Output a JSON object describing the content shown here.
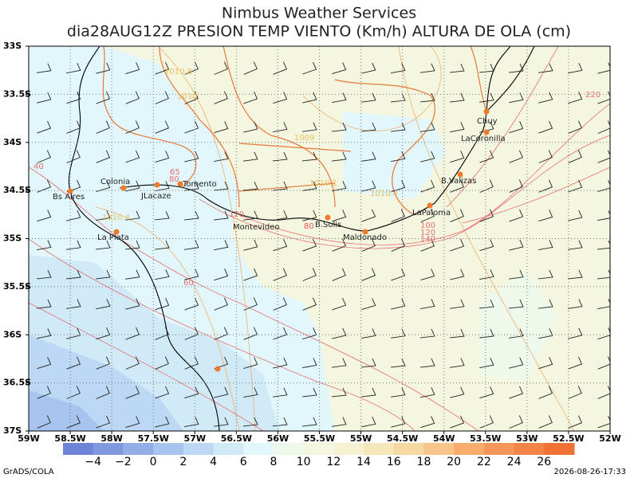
{
  "title": {
    "line1": "Nimbus Weather Services",
    "line2": "dia28AUG12Z PRESION TEMP VIENTO (Km/h) ALTURA DE OLA (cm)"
  },
  "x_axis_labels": [
    "59W",
    "58.5W",
    "58W",
    "57.5W",
    "57W",
    "56.5W",
    "56W",
    "55.5W",
    "55W",
    "54.5W",
    "54W",
    "53.5W",
    "53W",
    "52.5W",
    "52W"
  ],
  "y_axis_labels": [
    "33S",
    "33.5S",
    "34S",
    "34.5S",
    "35S",
    "35.5S",
    "36S",
    "36.5S",
    "37S"
  ],
  "cities": [
    "Chuy",
    "LaCoronilla",
    "B.Valizas",
    "LaPaloma",
    "Maldonado",
    "B.Solis",
    "Montevideo",
    "Colonia",
    "JLacaze",
    "Tomento",
    "Bs Aires",
    "La Plata"
  ],
  "contour_labels": [
    "1010.8",
    "1010",
    "1009",
    "1010.1",
    "1010.4",
    "1010.4",
    "40",
    "60",
    "80",
    "65",
    "80",
    "100",
    "120",
    "140",
    "120",
    "80",
    "220"
  ],
  "colorbar": {
    "labels": [
      "−4",
      "−2",
      "0",
      "2",
      "4",
      "6",
      "8",
      "10",
      "12",
      "14",
      "16",
      "18",
      "20",
      "22",
      "24",
      "26"
    ],
    "colors": [
      "#6e84d8",
      "#7f98de",
      "#93aee6",
      "#a7c4ee",
      "#bcd8f4",
      "#d0eaf8",
      "#e2f7fb",
      "#eef9ec",
      "#f4f6df",
      "#f6f1d0",
      "#f5e7b9",
      "#f5d8a2",
      "#f7c48a",
      "#f8ad6c",
      "#f6965a",
      "#f38448",
      "#ef7334"
    ]
  },
  "footer": {
    "left": "GrADS/COLA",
    "right": "2026-08-26-17:33"
  }
}
